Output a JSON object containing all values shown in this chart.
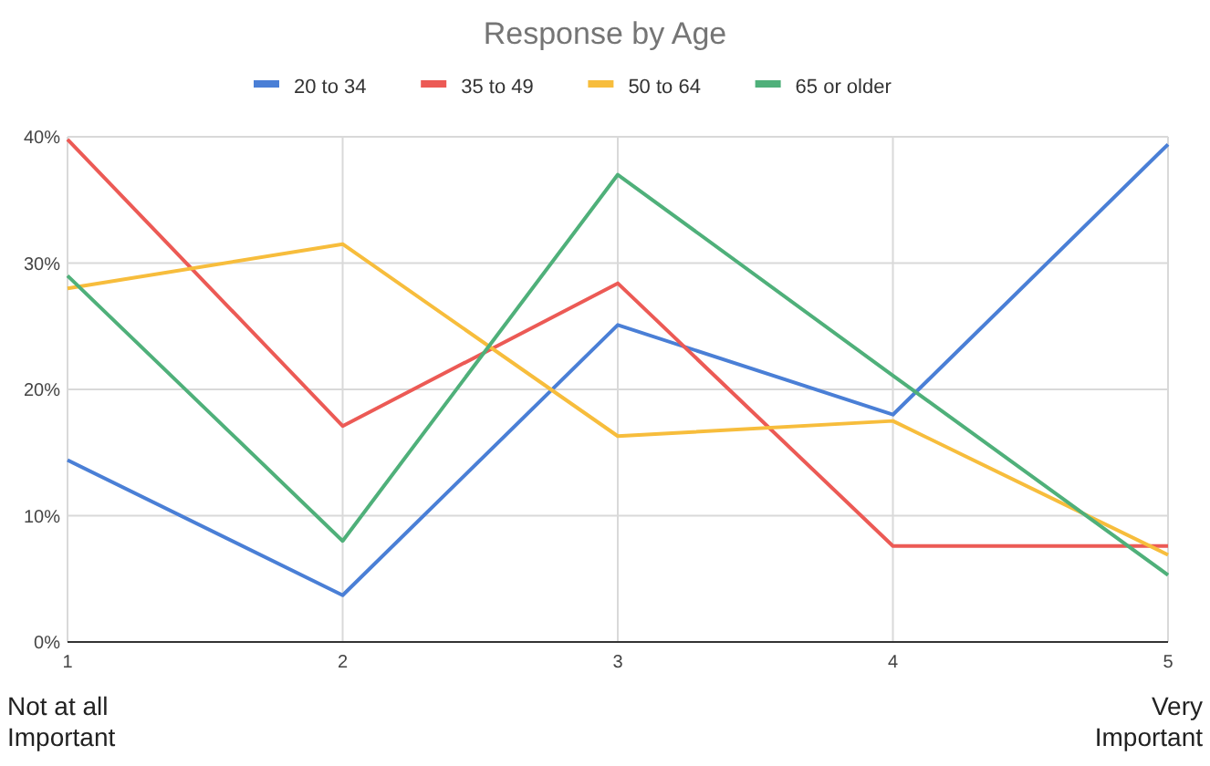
{
  "chart_data": {
    "type": "line",
    "title": "Response by Age",
    "x": [
      1,
      2,
      3,
      4,
      5
    ],
    "xlim": [
      1,
      5
    ],
    "xticks": [
      1,
      2,
      3,
      4,
      5
    ],
    "ylim": [
      0,
      40
    ],
    "yticks": [
      {
        "value": 0,
        "label": "0%"
      },
      {
        "value": 10,
        "label": "10%"
      },
      {
        "value": 20,
        "label": "20%"
      },
      {
        "value": 30,
        "label": "30%"
      },
      {
        "value": 40,
        "label": "40%"
      }
    ],
    "grid": true,
    "legend": "top",
    "marker": "none",
    "line_style": "solid",
    "series": [
      {
        "name": "20 to 34",
        "color": "#4a7fd6",
        "values": [
          14.4,
          3.7,
          25.1,
          18.0,
          39.4
        ]
      },
      {
        "name": "35 to 49",
        "color": "#ec5a55",
        "values": [
          39.8,
          17.1,
          28.4,
          7.6,
          7.6
        ]
      },
      {
        "name": "50 to 64",
        "color": "#f7bd3c",
        "values": [
          28.0,
          31.5,
          16.3,
          17.5,
          6.9
        ]
      },
      {
        "name": "65 or older",
        "color": "#4fb07a",
        "values": [
          29.0,
          8.0,
          37.0,
          21.1,
          5.3
        ]
      }
    ],
    "annotations": [
      "Not at all\nImportant",
      "Very\nImportant"
    ]
  }
}
